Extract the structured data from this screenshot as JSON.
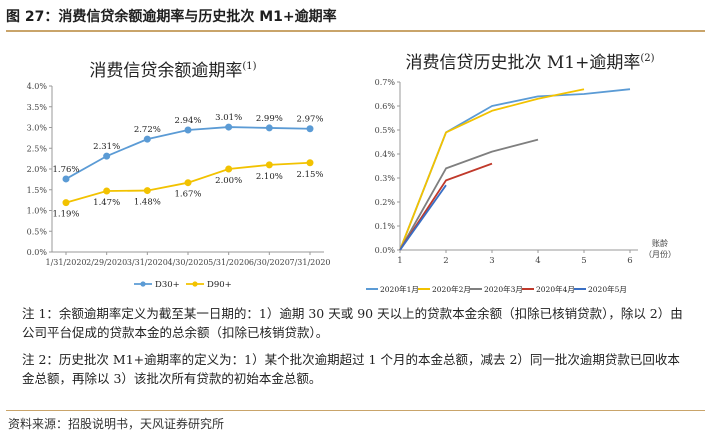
{
  "figure": {
    "title": "图 27：消费信贷余额逾期率与历史批次 M1+逾期率",
    "source": "资料来源：招股说明书，天风证券研究所",
    "note1": "注 1：余额逾期率定义为截至某一日期的：1）逾期 30 天或 90 天以上的贷款本金余额（扣除已核销贷款），除以 2）由公司平台促成的贷款本金的总余额（扣除已核销贷款）。",
    "note2": "注 2：历史批次 M1+逾期率的定义为：1）某个批次逾期超过 1 个月的本金总额，减去 2）同一批次逾期贷款已回收本金总额，再除以 3）该批次所有贷款的初始本金总额。"
  },
  "chart_data": [
    {
      "type": "line",
      "title": "消费信贷余额逾期率",
      "title_sup": "(1)",
      "categories": [
        "1/31/2020",
        "2/29/2020",
        "3/31/2020",
        "4/30/2020",
        "5/31/2020",
        "6/30/2020",
        "7/31/2020"
      ],
      "yticks": [
        "0.0%",
        "0.5%",
        "1.0%",
        "1.5%",
        "2.0%",
        "2.5%",
        "3.0%",
        "3.5%",
        "4.0%"
      ],
      "ylim": [
        0,
        4.0
      ],
      "series": [
        {
          "name": "D30+",
          "color": "#5b9bd5",
          "values": [
            1.76,
            2.31,
            2.72,
            2.94,
            3.01,
            2.99,
            2.97
          ],
          "labels": [
            "1.76%",
            "2.31%",
            "2.72%",
            "2.94%",
            "3.01%",
            "2.99%",
            "2.97%"
          ]
        },
        {
          "name": "D90+",
          "color": "#f2c200",
          "values": [
            1.19,
            1.47,
            1.48,
            1.67,
            2.0,
            2.1,
            2.15
          ],
          "labels": [
            "1.19%",
            "1.47%",
            "1.48%",
            "1.67%",
            "2.00%",
            "2.10%",
            "2.15%"
          ]
        }
      ],
      "legend": "bottom-center",
      "grid": false
    },
    {
      "type": "line",
      "title": "消费信贷历史批次 M1+逾期率",
      "title_sup": "(2)",
      "xlabel": "账龄",
      "xlabel2": "（月份）",
      "x": [
        1,
        2,
        3,
        4,
        5,
        6
      ],
      "xlim": [
        1,
        6
      ],
      "yticks": [
        "0.0%",
        "0.1%",
        "0.2%",
        "0.3%",
        "0.4%",
        "0.5%",
        "0.6%",
        "0.7%"
      ],
      "ylim": [
        0,
        0.7
      ],
      "series": [
        {
          "name": "2020年1月",
          "color": "#5b9bd5",
          "x": [
            1,
            2,
            3,
            4,
            5,
            6
          ],
          "values": [
            0.0,
            0.49,
            0.6,
            0.64,
            0.65,
            0.67
          ]
        },
        {
          "name": "2020年2月",
          "color": "#f2c200",
          "x": [
            1,
            2,
            3,
            4,
            5
          ],
          "values": [
            0.0,
            0.49,
            0.58,
            0.63,
            0.67
          ]
        },
        {
          "name": "2020年3月",
          "color": "#7f7f7f",
          "x": [
            1,
            2,
            3,
            4
          ],
          "values": [
            0.0,
            0.34,
            0.41,
            0.46
          ]
        },
        {
          "name": "2020年4月",
          "color": "#c0392b",
          "x": [
            1,
            2,
            3
          ],
          "values": [
            0.0,
            0.29,
            0.36
          ]
        },
        {
          "name": "2020年5月",
          "color": "#3a6fc4",
          "x": [
            1,
            2
          ],
          "values": [
            0.0,
            0.27
          ]
        }
      ],
      "legend": "bottom",
      "grid": false
    }
  ]
}
